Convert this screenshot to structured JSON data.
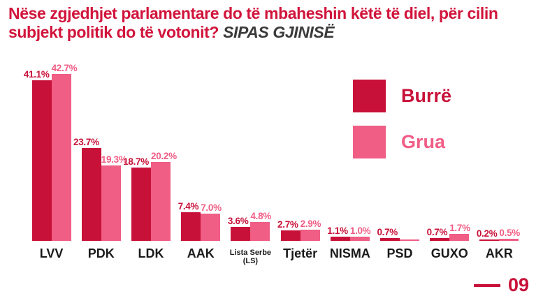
{
  "title": {
    "question": "Nëse zgjedhjet parlamentare do të mbaheshin këtë të diel, për cilin subjekt politik do të votonit?",
    "subtitle": "SIPAS GJINISË"
  },
  "page": {
    "number": "09"
  },
  "colors": {
    "title_red": "#D1143B",
    "subtitle_dark": "#3B3B3B",
    "primary_dark": "#C81139",
    "primary_pink": "#F05D85"
  },
  "chart_data": {
    "type": "bar",
    "title": "Nëse zgjedhjet parlamentare do të mbaheshin këtë të diel, për cilin subjekt politik do të votonit? SIPAS GJINISË",
    "unit": "%",
    "categories": [
      "LVV",
      "PDK",
      "LDK",
      "AAK",
      "Lista Serbe (LS)",
      "Tjetër",
      "NISMA",
      "PSD",
      "GUXO",
      "AKR"
    ],
    "categories_display": [
      "LVV",
      "PDK",
      "LDK",
      "AAK",
      "Lista Serbe\n(LS)",
      "Tjetër",
      "NISMA",
      "PSD",
      "GUXO",
      "AKR"
    ],
    "series": [
      {
        "name": "Burrë",
        "color": "#C81139",
        "values": [
          41.1,
          23.7,
          18.7,
          7.4,
          3.6,
          2.7,
          1.1,
          0.7,
          0.7,
          0.2
        ],
        "labels": [
          "41.1%",
          "23.7%",
          "18.7%",
          "7.4%",
          "3.6%",
          "2.7%",
          "1.1%",
          "0.7%",
          "0.7%",
          "0.2%"
        ]
      },
      {
        "name": "Grua",
        "color": "#F05D85",
        "values": [
          42.7,
          19.3,
          20.2,
          7.0,
          4.8,
          2.9,
          1.0,
          0.1,
          1.7,
          0.5
        ],
        "labels": [
          "42.7%",
          "19.3%",
          "20.2%",
          "7.0%",
          "4.8%",
          "2.9%",
          "1.0%",
          "",
          "1.7%",
          "0.5%"
        ]
      }
    ],
    "ylim": [
      0,
      45
    ],
    "grid": false,
    "axis_lines": false,
    "legend_position": "right"
  }
}
